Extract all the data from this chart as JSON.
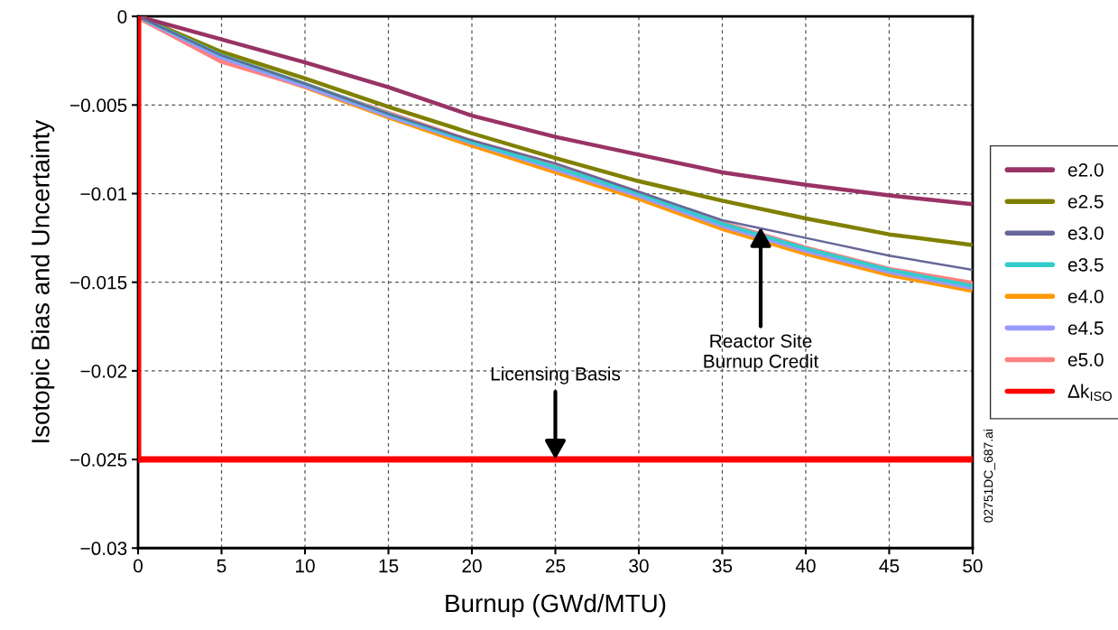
{
  "chart_data": {
    "type": "line",
    "xlabel": "Burnup (GWd/MTU)",
    "ylabel": "Isotopic Bias and Uncertainty",
    "xlim": [
      0,
      50
    ],
    "xticks": [
      0,
      5,
      10,
      15,
      20,
      25,
      30,
      35,
      40,
      45,
      50
    ],
    "ylim": [
      -0.03,
      0
    ],
    "yticks": [
      {
        "value": -0.03,
        "label": "−0.03"
      },
      {
        "value": -0.025,
        "label": "−0.025"
      },
      {
        "value": -0.02,
        "label": "−0.02"
      },
      {
        "value": -0.015,
        "label": "−0.015"
      },
      {
        "value": -0.01,
        "label": "−0.01"
      },
      {
        "value": -0.005,
        "label": "−0.005"
      },
      0
    ],
    "x": [
      0,
      5,
      10,
      15,
      20,
      25,
      30,
      35,
      40,
      45,
      50
    ],
    "grid": true,
    "legend": "right",
    "line_style": "solid",
    "marker": "none",
    "series": [
      {
        "name": "e2.0",
        "color": "#993366",
        "values": [
          0,
          -0.0013,
          -0.0026,
          -0.004,
          -0.0056,
          -0.0068,
          -0.0078,
          -0.0088,
          -0.0095,
          -0.0101,
          -0.0106
        ]
      },
      {
        "name": "e2.5",
        "color": "#808000",
        "values": [
          0,
          -0.002,
          -0.0035,
          -0.0051,
          -0.0066,
          -0.008,
          -0.0093,
          -0.0104,
          -0.0114,
          -0.0123,
          -0.0129
        ]
      },
      {
        "name": "e3.0",
        "color": "#666699",
        "values": [
          0,
          -0.0022,
          -0.0038,
          -0.0055,
          -0.007,
          -0.0083,
          -0.0099,
          -0.0115,
          -0.0125,
          -0.0135,
          -0.0143
        ]
      },
      {
        "name": "e3.5",
        "color": "#33cccc",
        "values": [
          0,
          -0.0022,
          -0.0038,
          -0.0055,
          -0.0071,
          -0.0085,
          -0.01,
          -0.0117,
          -0.0131,
          -0.0143,
          -0.0152
        ]
      },
      {
        "name": "e4.0",
        "color": "#ff9900",
        "values": [
          0,
          -0.0023,
          -0.0039,
          -0.0056,
          -0.0072,
          -0.0087,
          -0.0102,
          -0.0119,
          -0.0133,
          -0.0145,
          -0.0154
        ]
      },
      {
        "name": "e4.5",
        "color": "#9999ff",
        "values": [
          0,
          -0.0023,
          -0.0039,
          -0.0056,
          -0.0071,
          -0.0086,
          -0.0101,
          -0.0118,
          -0.0132,
          -0.0144,
          -0.0153
        ]
      },
      {
        "name": "e5.0",
        "color": "#ff8080",
        "values": [
          0,
          -0.0025,
          -0.0039,
          -0.0055,
          -0.0071,
          -0.0084,
          -0.01,
          -0.0117,
          -0.0131,
          -0.0143,
          -0.0151
        ]
      }
    ],
    "ref_lines": [
      {
        "axis": "y",
        "value": -0.025,
        "label": "Δk$_{ISO}$",
        "color": "#ff0000"
      },
      {
        "axis": "x",
        "value": 0,
        "color": "#ff0000"
      }
    ],
    "annotations": [
      {
        "text": "Licensing Basis",
        "x": 25,
        "y": -0.025
      },
      {
        "text": "Reactor Site\nBurnup Credit",
        "x": 37.3,
        "y": -0.0119
      },
      "02751DC_687.ai"
    ]
  }
}
